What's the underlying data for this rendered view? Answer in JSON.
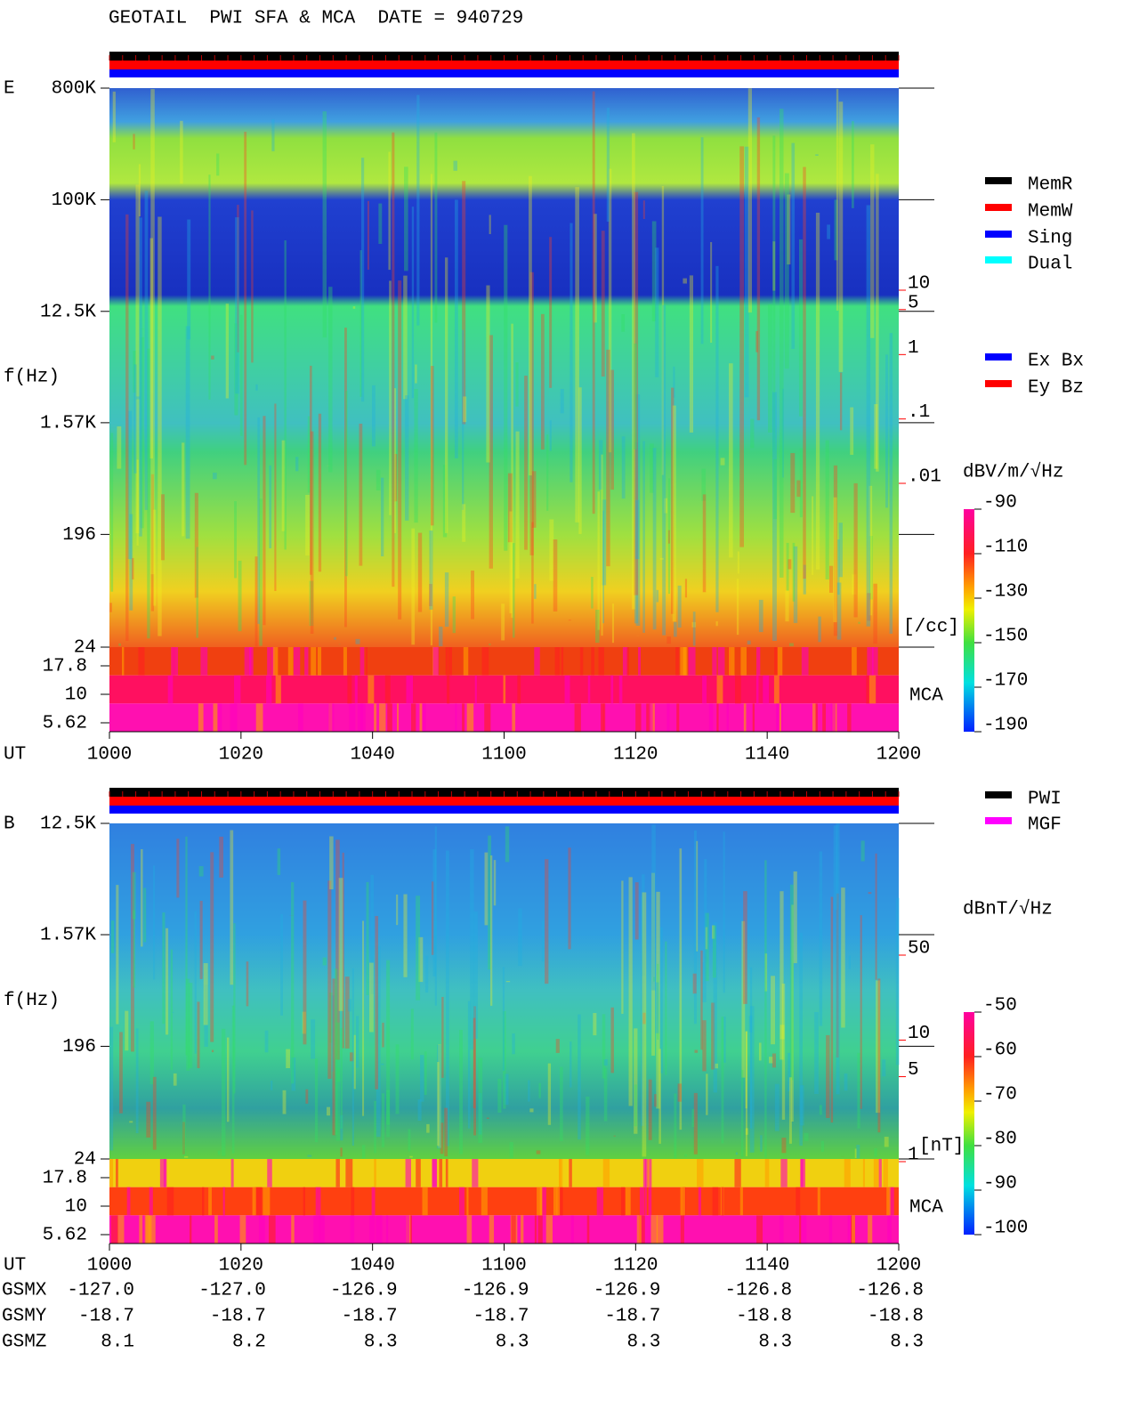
{
  "title": "GEOTAIL  PWI SFA & MCA  DATE = 940729",
  "chart_data": [
    {
      "type": "spectrogram",
      "panel_label": "E",
      "ylabel": "f(Hz)",
      "log_y": true,
      "ylim": [
        24,
        800000
      ],
      "yticks": [
        {
          "value": 800000,
          "label": "800K"
        },
        {
          "value": 100000,
          "label": "100K"
        },
        {
          "value": 12500,
          "label": "12.5K"
        },
        {
          "value": 1570,
          "label": "1.57K"
        },
        196,
        24
      ],
      "mca_label": "MCA",
      "mca_ticks": [
        17.8,
        10,
        5.62
      ],
      "xlabel": "UT",
      "x": [
        "1000",
        "1020",
        "1040",
        "1100",
        "1120",
        "1140",
        "1200"
      ],
      "legend": [
        {
          "name": "MemR",
          "color": "#000000"
        },
        {
          "name": "MemW",
          "color": "#ff0000"
        },
        {
          "name": "Sing",
          "color": "#0000ff"
        },
        {
          "name": "Dual",
          "color": "#00ffff"
        }
      ],
      "legend2": [
        {
          "name": "Ex Bx",
          "color": "#0000ff"
        },
        {
          "name": "Ey Bz",
          "color": "#ff0000"
        }
      ],
      "colorbar": {
        "label": "dBV/m/√Hz",
        "clim": [
          -190,
          -90
        ],
        "ticks": [
          -90,
          -110,
          -130,
          -150,
          -170,
          -190
        ]
      },
      "side_scale": {
        "label": "[/cc]",
        "color": "#ff0000",
        "lim": [
          0.01,
          10
        ],
        "ticks": [
          10,
          5,
          1,
          {
            "value": 0.1,
            "label": ".1"
          },
          {
            "value": 0.01,
            "label": ".01"
          }
        ]
      }
    },
    {
      "type": "spectrogram",
      "panel_label": "B",
      "ylabel": "f(Hz)",
      "log_y": true,
      "ylim": [
        24,
        12500
      ],
      "yticks": [
        {
          "value": 12500,
          "label": "12.5K"
        },
        {
          "value": 1570,
          "label": "1.57K"
        },
        196,
        24
      ],
      "mca_label": "MCA",
      "mca_ticks": [
        17.8,
        10,
        5.62
      ],
      "xlabel": "UT",
      "x": [
        "1000",
        "1020",
        "1040",
        "1100",
        "1120",
        "1140",
        "1200"
      ],
      "legend": [
        {
          "name": "PWI",
          "color": "#000000"
        },
        {
          "name": "MGF",
          "color": "#ff00ff"
        }
      ],
      "colorbar": {
        "label": "dBnT/√Hz",
        "clim": [
          -100,
          -50
        ],
        "ticks": [
          -50,
          -60,
          -70,
          -80,
          -90,
          -100
        ]
      },
      "side_scale": {
        "label": "[nT]",
        "color": "#ff0000",
        "lim": [
          1,
          50
        ],
        "ticks": [
          50,
          10,
          5,
          1
        ]
      }
    }
  ],
  "orbit": {
    "rows": [
      {
        "label": "GSMX",
        "values": [
          "-127.0",
          "-127.0",
          "-126.9",
          "-126.9",
          "-126.9",
          "-126.8",
          "-126.8"
        ]
      },
      {
        "label": "GSMY",
        "values": [
          "-18.7",
          "-18.7",
          "-18.7",
          "-18.7",
          "-18.7",
          "-18.8",
          "-18.8"
        ]
      },
      {
        "label": "GSMZ",
        "values": [
          "8.1",
          "8.2",
          "8.3",
          "8.3",
          "8.3",
          "8.3",
          "8.3"
        ]
      }
    ]
  }
}
